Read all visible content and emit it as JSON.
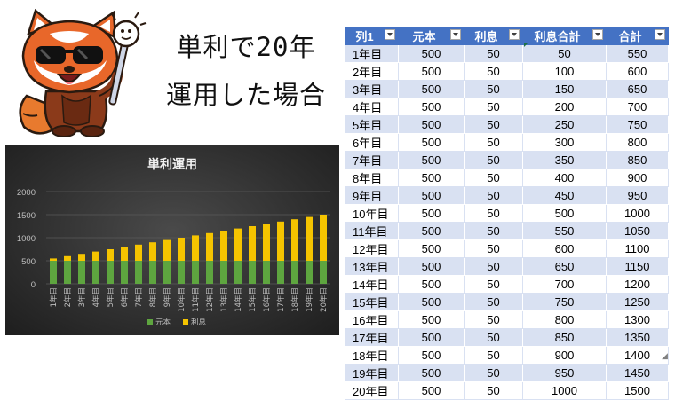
{
  "heading": {
    "line1": "単利で20年",
    "line2": "運用した場合"
  },
  "colors": {
    "principal": "#5ea53f",
    "interest": "#f5c400",
    "table_header": "#4472c4",
    "table_band": "#d9e1f2"
  },
  "chart_data": {
    "type": "bar",
    "stacked": true,
    "title": "単利運用",
    "categories": [
      "1年目",
      "2年目",
      "3年目",
      "4年目",
      "5年目",
      "6年目",
      "7年目",
      "8年目",
      "9年目",
      "10年目",
      "11年目",
      "12年目",
      "13年目",
      "14年目",
      "15年目",
      "16年目",
      "17年目",
      "18年目",
      "19年目",
      "20年目"
    ],
    "series": [
      {
        "name": "元本",
        "color": "#5ea53f",
        "values": [
          500,
          500,
          500,
          500,
          500,
          500,
          500,
          500,
          500,
          500,
          500,
          500,
          500,
          500,
          500,
          500,
          500,
          500,
          500,
          500
        ]
      },
      {
        "name": "利息",
        "color": "#f5c400",
        "values": [
          50,
          100,
          150,
          200,
          250,
          300,
          350,
          400,
          450,
          500,
          550,
          600,
          650,
          700,
          750,
          800,
          850,
          900,
          950,
          1000
        ]
      }
    ],
    "ylim": [
      0,
      2000
    ],
    "yticks": [
      "0",
      "500",
      "1000",
      "1500",
      "2000"
    ],
    "grid": true,
    "legend": "bottom"
  },
  "table": {
    "headers": [
      "列1",
      "元本",
      "利息",
      "利息合計",
      "合計"
    ],
    "rows": [
      [
        "1年目",
        "500",
        "50",
        "50",
        "550"
      ],
      [
        "2年目",
        "500",
        "50",
        "100",
        "600"
      ],
      [
        "3年目",
        "500",
        "50",
        "150",
        "650"
      ],
      [
        "4年目",
        "500",
        "50",
        "200",
        "700"
      ],
      [
        "5年目",
        "500",
        "50",
        "250",
        "750"
      ],
      [
        "6年目",
        "500",
        "50",
        "300",
        "800"
      ],
      [
        "7年目",
        "500",
        "50",
        "350",
        "850"
      ],
      [
        "8年目",
        "500",
        "50",
        "400",
        "900"
      ],
      [
        "9年目",
        "500",
        "50",
        "450",
        "950"
      ],
      [
        "10年目",
        "500",
        "50",
        "500",
        "1000"
      ],
      [
        "11年目",
        "500",
        "50",
        "550",
        "1050"
      ],
      [
        "12年目",
        "500",
        "50",
        "600",
        "1100"
      ],
      [
        "13年目",
        "500",
        "50",
        "650",
        "1150"
      ],
      [
        "14年目",
        "500",
        "50",
        "700",
        "1200"
      ],
      [
        "15年目",
        "500",
        "50",
        "750",
        "1250"
      ],
      [
        "16年目",
        "500",
        "50",
        "800",
        "1300"
      ],
      [
        "17年目",
        "500",
        "50",
        "850",
        "1350"
      ],
      [
        "18年目",
        "500",
        "50",
        "900",
        "1400"
      ],
      [
        "19年目",
        "500",
        "50",
        "950",
        "1450"
      ],
      [
        "20年目",
        "500",
        "50",
        "1000",
        "1500"
      ]
    ]
  }
}
